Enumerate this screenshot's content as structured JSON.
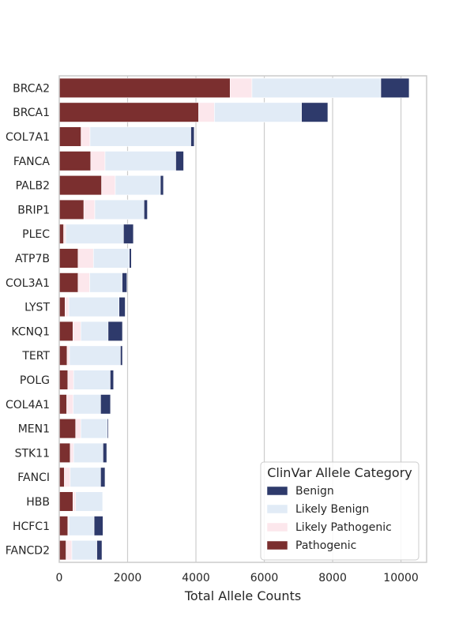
{
  "chart_data": {
    "type": "bar",
    "orientation": "horizontal",
    "stacked": true,
    "title": "",
    "xlabel": "Total Allele Counts",
    "ylabel": "",
    "xlim": [
      0,
      10750
    ],
    "xticks": [
      0,
      2000,
      4000,
      6000,
      8000,
      10000
    ],
    "xtick_labels": [
      "0",
      "2000",
      "4000",
      "6000",
      "8000",
      "10000"
    ],
    "grid": "vertical",
    "legend_title": "ClinVar Allele Category",
    "legend_position": "bottom-right",
    "categories": [
      "BRCA2",
      "BRCA1",
      "COL7A1",
      "FANCA",
      "PALB2",
      "BRIP1",
      "PLEC",
      "ATP7B",
      "COL3A1",
      "LYST",
      "KCNQ1",
      "TERT",
      "POLG",
      "COL4A1",
      "MEN1",
      "STK11",
      "FANCI",
      "HBB",
      "HCFC1",
      "FANCD2"
    ],
    "series": [
      {
        "name": "Pathogenic",
        "color": "#7b2f2f",
        "values": [
          5000,
          4080,
          640,
          920,
          1240,
          720,
          130,
          550,
          550,
          170,
          400,
          230,
          250,
          220,
          480,
          320,
          150,
          400,
          250,
          200
        ]
      },
      {
        "name": "Likely Pathogenic",
        "color": "#fce7ec",
        "values": [
          640,
          460,
          260,
          420,
          400,
          320,
          60,
          450,
          340,
          110,
          230,
          70,
          170,
          190,
          150,
          100,
          170,
          80,
          30,
          170
        ]
      },
      {
        "name": "Likely Benign",
        "color": "#e1ebf6",
        "values": [
          3770,
          2550,
          2950,
          2070,
          1320,
          1440,
          1690,
          1050,
          950,
          1470,
          800,
          1490,
          1070,
          800,
          780,
          860,
          890,
          790,
          740,
          730
        ]
      },
      {
        "name": "Benign",
        "color": "#2e3a6b",
        "values": [
          830,
          770,
          100,
          230,
          90,
          100,
          290,
          60,
          140,
          180,
          420,
          60,
          100,
          290,
          30,
          110,
          130,
          0,
          260,
          150
        ]
      }
    ],
    "legend_order": [
      "Benign",
      "Likely Benign",
      "Likely Pathogenic",
      "Pathogenic"
    ]
  }
}
